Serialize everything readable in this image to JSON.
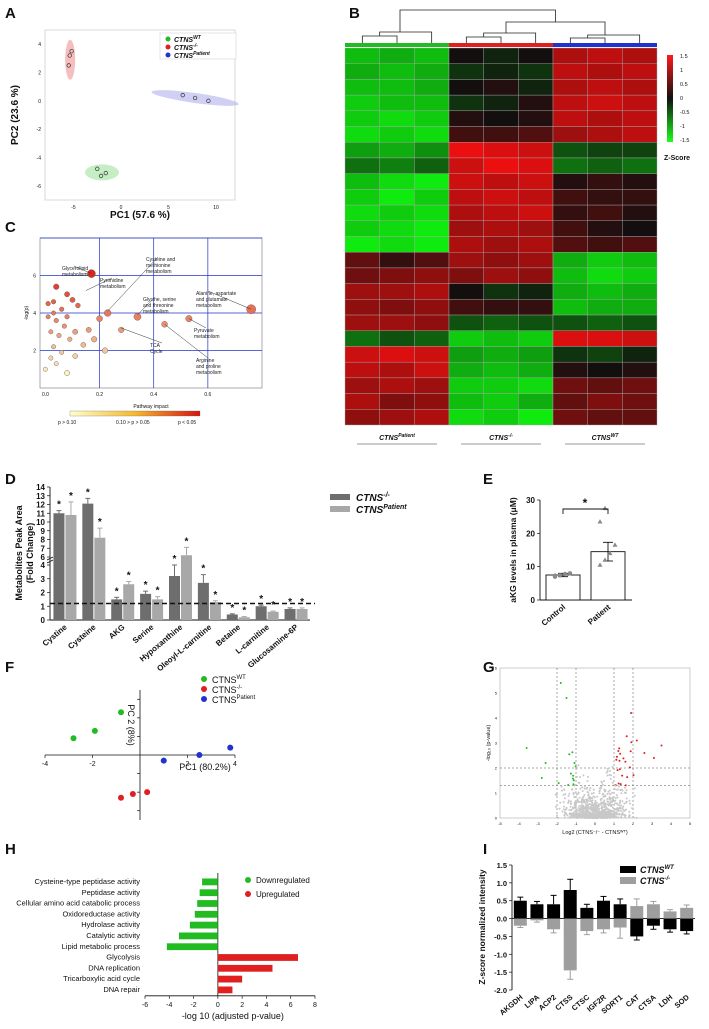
{
  "panel_letters": [
    "A",
    "B",
    "C",
    "D",
    "E",
    "F",
    "G",
    "H",
    "I"
  ],
  "colors": {
    "green": "#22bb22",
    "red": "#e02020",
    "blue": "#2233cc",
    "dark_gray": "#6e6e6e",
    "light_gray": "#a8a8a8"
  },
  "chart_data": [
    {
      "panel": "A",
      "type": "scatter",
      "xlabel": "PC1 (57.6 %)",
      "ylabel": "PC2 (23.6 %)",
      "xlim": [
        -8,
        12
      ],
      "ylim": [
        -7,
        5
      ],
      "x_ticks": [
        "-5",
        "0",
        "5",
        "10"
      ],
      "y_ticks": [
        "-6",
        "-4",
        "-2",
        "0",
        "2",
        "4"
      ],
      "legend_position": "top-right",
      "series": [
        {
          "name": "CTNS",
          "sup": "WT",
          "points": [
            [
              -2.5,
              -4.8
            ],
            [
              -1.6,
              -5.1
            ],
            [
              -2.1,
              -5.3
            ]
          ]
        },
        {
          "name": "CTNS",
          "sup": "-/-",
          "points": [
            [
              -5.4,
              3.2
            ],
            [
              -5.2,
              3.5
            ],
            [
              -5.5,
              2.5
            ]
          ]
        },
        {
          "name": "CTNS",
          "sup": "Patient",
          "points": [
            [
              6.5,
              0.4
            ],
            [
              7.8,
              0.2
            ],
            [
              9.2,
              0.0
            ]
          ]
        }
      ]
    },
    {
      "panel": "B",
      "type": "heatmap",
      "column_groups": [
        {
          "name": "CTNS",
          "sup": "Patient"
        },
        {
          "name": "CTNS",
          "sup": "-/-"
        },
        {
          "name": "CTNS",
          "sup": "WT"
        }
      ],
      "colorbar_label": "Z-Score",
      "colorbar_ticks": [
        "1.5",
        "1",
        "0.5",
        "0",
        "-0.5",
        "-1",
        "-1.5"
      ],
      "zlim": [
        -1.5,
        1.5
      ],
      "matrix": [
        [
          -1.1,
          -1.0,
          -1.1,
          0.0,
          -0.1,
          0.0,
          1.0,
          1.1,
          1.0
        ],
        [
          -1.0,
          -1.1,
          -1.0,
          -0.2,
          -0.1,
          -0.2,
          1.1,
          1.0,
          1.1
        ],
        [
          -1.1,
          -1.1,
          -1.0,
          0.0,
          0.1,
          -0.1,
          1.0,
          1.1,
          1.0
        ],
        [
          -1.2,
          -1.1,
          -1.1,
          -0.2,
          -0.1,
          0.1,
          1.1,
          1.2,
          1.1
        ],
        [
          -1.2,
          -1.3,
          -1.2,
          0.1,
          0.0,
          0.1,
          1.1,
          1.0,
          1.1
        ],
        [
          -1.3,
          -1.2,
          -1.3,
          0.3,
          0.3,
          0.4,
          0.9,
          1.0,
          1.1
        ],
        [
          -0.9,
          -1.0,
          -0.8,
          1.4,
          1.3,
          1.2,
          -0.4,
          -0.3,
          -0.3
        ],
        [
          -0.6,
          -0.7,
          -0.5,
          1.2,
          1.4,
          1.3,
          -0.6,
          -0.5,
          -0.6
        ],
        [
          -1.1,
          -1.3,
          -1.4,
          1.2,
          1.1,
          1.2,
          0.1,
          0.2,
          0.1
        ],
        [
          -1.2,
          -1.4,
          -1.2,
          1.1,
          1.2,
          1.1,
          0.3,
          0.2,
          0.2
        ],
        [
          -1.3,
          -1.2,
          -1.3,
          1.0,
          1.1,
          1.2,
          0.2,
          0.3,
          0.1
        ],
        [
          -1.2,
          -1.3,
          -1.4,
          0.9,
          1.0,
          0.9,
          0.3,
          0.1,
          0.0
        ],
        [
          -1.4,
          -1.3,
          -1.4,
          1.0,
          0.9,
          1.0,
          0.4,
          0.3,
          0.4
        ],
        [
          0.5,
          0.2,
          0.4,
          0.9,
          0.8,
          0.9,
          -1.0,
          -1.2,
          -1.1
        ],
        [
          0.6,
          0.7,
          0.8,
          0.7,
          0.9,
          0.8,
          -1.1,
          -1.3,
          -1.2
        ],
        [
          0.9,
          0.9,
          1.0,
          0.0,
          -0.2,
          -0.1,
          -1.0,
          -1.1,
          -1.0
        ],
        [
          0.8,
          0.7,
          0.8,
          0.3,
          0.2,
          0.2,
          -1.1,
          -1.0,
          -1.0
        ],
        [
          0.9,
          0.9,
          0.8,
          -0.4,
          -0.5,
          -0.4,
          -0.4,
          -0.5,
          -0.4
        ],
        [
          -0.6,
          -0.4,
          -0.5,
          -1.2,
          -1.1,
          -1.2,
          1.3,
          1.3,
          1.2
        ],
        [
          1.2,
          1.3,
          1.2,
          -0.9,
          -1.0,
          -0.9,
          -0.2,
          -0.3,
          -0.1
        ],
        [
          1.1,
          1.0,
          1.2,
          -1.0,
          -1.1,
          -1.0,
          0.1,
          0.0,
          0.1
        ],
        [
          0.9,
          1.0,
          0.9,
          -1.2,
          -1.2,
          -1.3,
          0.6,
          0.5,
          0.6
        ],
        [
          1.0,
          0.7,
          0.8,
          -1.1,
          -1.2,
          -1.0,
          0.5,
          0.7,
          0.6
        ],
        [
          0.8,
          0.9,
          1.0,
          -1.3,
          -1.2,
          -1.4,
          0.6,
          0.5,
          0.5
        ]
      ]
    },
    {
      "panel": "C",
      "type": "scatter",
      "xlabel": "Pathway impact",
      "ylabel": "-log(p)",
      "xlim": [
        -0.02,
        0.8
      ],
      "ylim": [
        0,
        8
      ],
      "x_ticks": [
        "0.0",
        "0.2",
        "0.4",
        "0.6"
      ],
      "y_ticks": [
        "2",
        "4",
        "6"
      ],
      "color_legend": [
        "p > 0.10",
        "0.10 > p > 0.05",
        "p < 0.05"
      ],
      "annotations": [
        "Glycerolipid\nmetabolism",
        "Pyrimidine\nmetabolism",
        "Cysteine and\nmethionine\nmetabolism",
        "Glycine, serine\nand threonine\nmetabolism",
        "Alanine, aspartate\nand glutamate\nmetabolism",
        "Pyruvate\nmetabolism",
        "TCA\nCycle",
        "Arginine\nand proline\nmetabolism"
      ],
      "points": [
        [
          0.17,
          6.1,
          4.0
        ],
        [
          0.04,
          5.4,
          2.8
        ],
        [
          0.08,
          5.0,
          2.6
        ],
        [
          0.03,
          4.6,
          2.3
        ],
        [
          0.01,
          4.5,
          2.3
        ],
        [
          0.1,
          4.7,
          2.6
        ],
        [
          0.12,
          4.4,
          2.4
        ],
        [
          0.06,
          4.2,
          2.3
        ],
        [
          0.03,
          4.0,
          2.2
        ],
        [
          0.08,
          3.8,
          2.3
        ],
        [
          0.01,
          3.8,
          2.2
        ],
        [
          0.23,
          4.0,
          3.4
        ],
        [
          0.2,
          3.7,
          3.0
        ],
        [
          0.34,
          3.8,
          3.6
        ],
        [
          0.53,
          3.7,
          3.2
        ],
        [
          0.76,
          4.2,
          4.6
        ],
        [
          0.44,
          3.4,
          3.0
        ],
        [
          0.28,
          3.1,
          2.8
        ],
        [
          0.04,
          3.6,
          2.3
        ],
        [
          0.07,
          3.3,
          2.3
        ],
        [
          0.11,
          3.0,
          2.6
        ],
        [
          0.16,
          3.1,
          2.6
        ],
        [
          0.02,
          3.0,
          2.2
        ],
        [
          0.18,
          2.6,
          2.8
        ],
        [
          0.05,
          2.8,
          2.3
        ],
        [
          0.09,
          2.6,
          2.3
        ],
        [
          0.14,
          2.3,
          2.5
        ],
        [
          0.03,
          2.2,
          2.2
        ],
        [
          0.06,
          1.9,
          2.2
        ],
        [
          0.22,
          2.0,
          2.8
        ],
        [
          0.11,
          1.7,
          2.5
        ],
        [
          0.02,
          1.6,
          2.2
        ],
        [
          0.04,
          1.3,
          2.2
        ],
        [
          0.08,
          0.8,
          2.6
        ],
        [
          0.0,
          1.0,
          2.2
        ]
      ]
    },
    {
      "panel": "D",
      "type": "bar",
      "ylabel": "Metabolites Peak Area (Fold Change)",
      "categories": [
        "Cystine",
        "Cysteine",
        "AKG",
        "Serine",
        "Hypoxanthine",
        "Oleoyl-L-carnitine",
        "Betaine",
        "L-carnitine",
        "Glucosamine-6P"
      ],
      "series": [
        {
          "name": "CTNS",
          "sup": "-/-",
          "values": [
            11.0,
            12.1,
            1.5,
            1.9,
            3.2,
            2.7,
            0.4,
            1.0,
            0.8
          ],
          "errors": [
            0.3,
            0.6,
            0.15,
            0.2,
            0.8,
            0.6,
            0.05,
            0.08,
            0.08
          ],
          "sig": [
            true,
            true,
            true,
            true,
            true,
            true,
            true,
            true,
            true
          ]
        },
        {
          "name": "CTNS",
          "sup": "Patient",
          "values": [
            10.8,
            8.2,
            2.6,
            1.5,
            6.2,
            1.3,
            0.2,
            0.6,
            0.8
          ],
          "errors": [
            1.5,
            1.1,
            0.2,
            0.2,
            0.9,
            0.1,
            0.05,
            0.05,
            0.08
          ],
          "sig": [
            true,
            true,
            true,
            true,
            true,
            true,
            true,
            true,
            true
          ]
        }
      ],
      "y_ticks_low": [
        "0",
        "1",
        "2",
        "3",
        "4"
      ],
      "y_ticks_high": [
        "6",
        "7",
        "8",
        "9",
        "10",
        "11",
        "12",
        "13",
        "14"
      ],
      "reference_line": 1.2,
      "sig_mark": "*"
    },
    {
      "panel": "E",
      "type": "bar",
      "ylabel": "aKG levels in plasma (μM)",
      "categories": [
        "Control",
        "Patient"
      ],
      "values": [
        7.5,
        14.5
      ],
      "errors": [
        0.5,
        2.8
      ],
      "points": [
        [
          7.0,
          7.4,
          7.8,
          8.0,
          7.3
        ],
        [
          10.5,
          12.0,
          14.0,
          16.5,
          23.5,
          27.5
        ]
      ],
      "ylim": [
        0,
        30
      ],
      "y_ticks": [
        "0",
        "10",
        "20",
        "30"
      ],
      "sig_mark": "*"
    },
    {
      "panel": "F",
      "type": "scatter",
      "xlabel": "PC1 (80.2%)",
      "ylabel": "PC 2 (8%)",
      "xlim": [
        -4,
        4
      ],
      "ylim": [
        -3.5,
        3.5
      ],
      "x_ticks": [
        "-4",
        "-2",
        "2",
        "4"
      ],
      "series": [
        {
          "name": "CTNS",
          "sup": "WT",
          "points": [
            [
              -0.8,
              2.3
            ],
            [
              -1.9,
              1.3
            ],
            [
              -2.8,
              0.9
            ]
          ]
        },
        {
          "name": "CTNS",
          "sup": "-/-",
          "points": [
            [
              -0.8,
              -2.3
            ],
            [
              -0.3,
              -2.1
            ],
            [
              0.3,
              -2.0
            ]
          ]
        },
        {
          "name": "CTNS",
          "sup": "Patient",
          "points": [
            [
              1.0,
              -0.3
            ],
            [
              2.5,
              0.0
            ],
            [
              3.8,
              0.4
            ]
          ]
        }
      ]
    },
    {
      "panel": "G",
      "type": "scatter",
      "xlabel": "Log2  (CTNS⁻/⁻ - CTNSᵂᵀ)",
      "ylabel": "-log₁₀ (p-value)",
      "xlim": [
        -5,
        5
      ],
      "ylim": [
        0,
        6
      ],
      "x_ticks": [
        "-5",
        "-4",
        "-3",
        "-2",
        "-1",
        "0",
        "1",
        "2",
        "3",
        "4",
        "5"
      ],
      "y_ticks": [
        "0",
        "1",
        "2",
        "3",
        "4",
        "5",
        "6"
      ]
    },
    {
      "panel": "H",
      "type": "bar",
      "xlabel": "-log 10 (adjusted p-value)",
      "xlim": [
        -6,
        8
      ],
      "x_ticks": [
        "-6",
        "-4",
        "-2",
        "0",
        "2",
        "4",
        "6",
        "8"
      ],
      "categories": [
        "Cysteine-type peptidase activity",
        "Peptidase activity",
        "Cellular amino acid catabolic process",
        "Oxidoreductase activity",
        "Hydrolase activity",
        "Catalytic activity",
        "Lipid metabolic process",
        "Glycolysis",
        "DNA replication",
        "Tricarboxylic acid cycle",
        "DNA repair"
      ],
      "values": [
        -1.3,
        -1.5,
        -1.7,
        -1.9,
        -2.3,
        -3.2,
        -4.2,
        6.6,
        4.5,
        2.0,
        1.2
      ],
      "legend": [
        "Downregulated",
        "Upregulated"
      ]
    },
    {
      "panel": "I",
      "type": "bar",
      "ylabel": "Z-score normalized intensity",
      "ylim": [
        -2.0,
        1.5
      ],
      "y_ticks": [
        "-2.0",
        "-1.5",
        "-1.0",
        "-0.5",
        "0.0",
        "0.5",
        "1.0",
        "1.5"
      ],
      "categories": [
        "AKGDH",
        "LIPA",
        "ACP2",
        "CTSS",
        "CTSC",
        "IGF2R",
        "SORT1",
        "CAT",
        "CTSA",
        "LDH",
        "SOD"
      ],
      "series": [
        {
          "name": "CTNS",
          "sup": "WT",
          "values": [
            0.5,
            0.4,
            0.4,
            0.8,
            0.3,
            0.5,
            0.4,
            -0.5,
            -0.2,
            -0.3,
            -0.35
          ],
          "errors": [
            0.1,
            0.08,
            0.25,
            0.3,
            0.1,
            0.12,
            0.15,
            0.1,
            0.1,
            0.08,
            0.08
          ]
        },
        {
          "name": "CTNS",
          "sup": "-/-",
          "values": [
            -0.2,
            -0.05,
            -0.3,
            -1.45,
            -0.35,
            -0.3,
            -0.25,
            0.35,
            0.4,
            0.2,
            0.3
          ],
          "errors": [
            0.05,
            0.05,
            0.1,
            0.25,
            0.1,
            0.1,
            0.3,
            0.2,
            0.08,
            0.05,
            0.08
          ]
        }
      ]
    }
  ]
}
